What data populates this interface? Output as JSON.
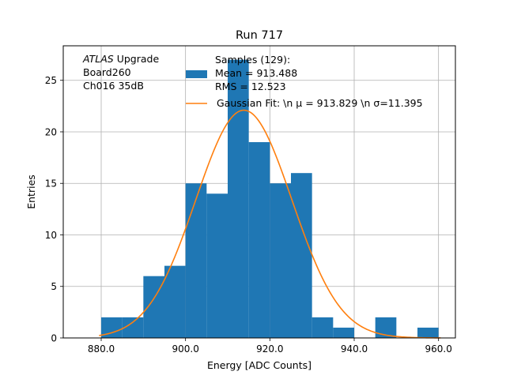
{
  "chart_data": {
    "type": "bar",
    "title": "Run 717",
    "xlabel": "Energy [ADC Counts]",
    "ylabel": "Entries",
    "xlim": [
      871,
      964
    ],
    "ylim": [
      0,
      28.35
    ],
    "grid": true,
    "x_ticks": [
      880,
      900,
      920,
      940,
      960
    ],
    "x_tick_labels": [
      "880.0",
      "900.0",
      "920.0",
      "940.0",
      "960.0"
    ],
    "y_ticks": [
      0,
      5,
      10,
      15,
      20,
      25
    ],
    "y_tick_labels": [
      "0",
      "5",
      "10",
      "15",
      "20",
      "25"
    ],
    "bin_edges": [
      880,
      885,
      890,
      895,
      900,
      905,
      910,
      915,
      920,
      925,
      930,
      935,
      940,
      945,
      950,
      955,
      960
    ],
    "values": [
      2,
      2,
      6,
      7,
      15,
      14,
      27,
      19,
      15,
      16,
      2,
      1,
      0,
      2,
      0,
      1
    ],
    "bar_color": "#1f77b4",
    "fit_color": "#ff7f0e",
    "fit": {
      "type": "gaussian",
      "mu": 913.829,
      "sigma": 11.395,
      "amplitude": 22.1,
      "x_range": [
        879.5,
        960.5
      ]
    },
    "annotation": {
      "lines": [
        {
          "italic": "ATLAS",
          "normal": " Upgrade"
        },
        {
          "italic": "",
          "normal": " Board260"
        },
        {
          "italic": "",
          "normal": " Ch016 35dB"
        }
      ]
    },
    "legend": {
      "placement": "upper-right",
      "entries": [
        {
          "type": "bar",
          "lines": [
            "Samples (129):",
            " Mean = 913.488",
            " RMS = 12.523"
          ]
        },
        {
          "type": "line",
          "lines": [
            "Gaussian Fit: \\n μ = 913.829 \\n σ=11.395"
          ]
        }
      ]
    }
  }
}
